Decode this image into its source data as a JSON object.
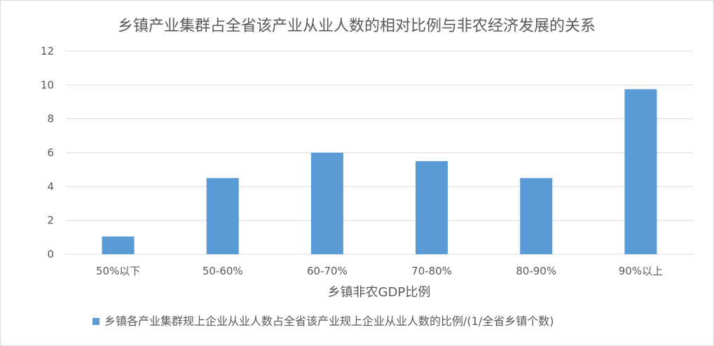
{
  "chart_data": {
    "type": "bar",
    "title": "乡镇产业集群占全省该产业从业人数的相对比例与非农经济发展的关系",
    "xlabel": "乡镇非农GDP比例",
    "ylabel": "",
    "categories": [
      "50%以下",
      "50-60%",
      "60-70%",
      "70-80%",
      "80-90%",
      "90%以上"
    ],
    "series": [
      {
        "name": "乡镇各产业集群规上企业从业人数占全省该产业规上企业从业人数的比例/(1/全省乡镇个数)",
        "values": [
          1.05,
          4.5,
          6.0,
          5.5,
          4.5,
          9.75
        ],
        "color": "#5b9bd5"
      }
    ],
    "ylim": [
      0,
      12
    ],
    "yticks": [
      0,
      2,
      4,
      6,
      8,
      10,
      12
    ],
    "grid": true,
    "legend_position": "bottom"
  }
}
